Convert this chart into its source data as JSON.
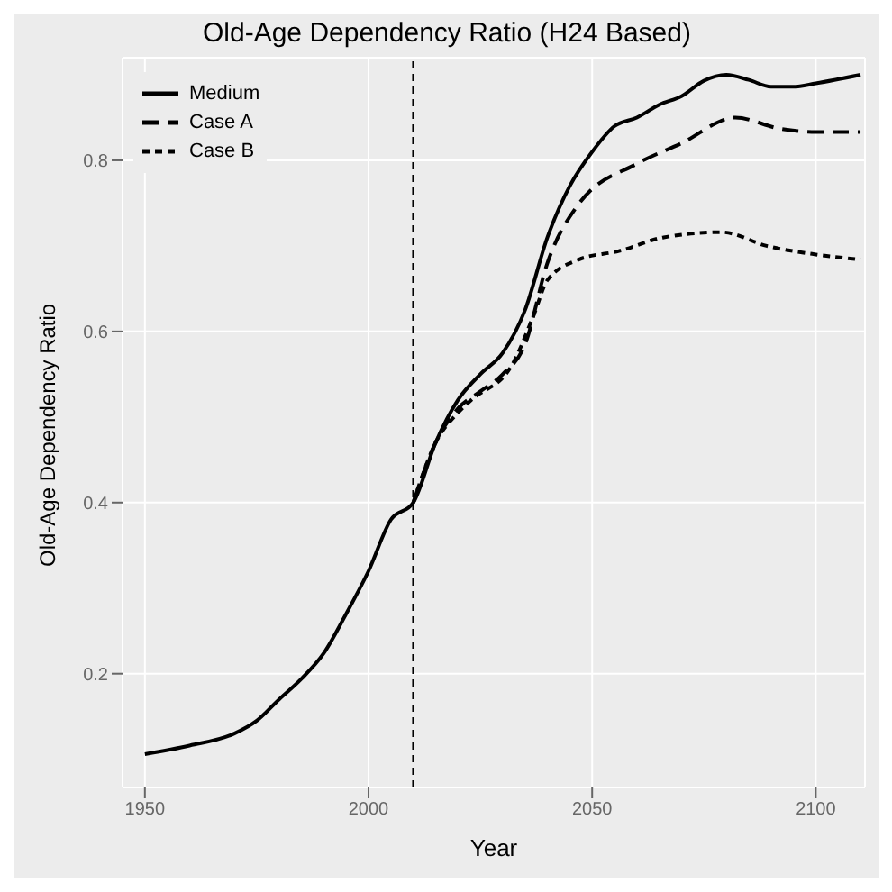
{
  "chart_data": {
    "type": "line",
    "title": "Old-Age Dependency Ratio (H24 Based)",
    "xlabel": "Year",
    "ylabel": "Old-Age Dependency Ratio",
    "xlim": [
      1945,
      2111
    ],
    "ylim": [
      0.067,
      0.92
    ],
    "xticks": [
      1950,
      2000,
      2050,
      2100
    ],
    "yticks": [
      0.2,
      0.4,
      0.6,
      0.8
    ],
    "grid": true,
    "legend": "top left",
    "marker": "none",
    "ref_lines": [
      {
        "axis": "x",
        "value": 2010,
        "color": "#000000",
        "line_style": "dotted"
      }
    ],
    "series": [
      {
        "name": "Medium",
        "color": "#000000",
        "line_style": "solid",
        "x": [
          1950,
          1960,
          1970,
          1975,
          1980,
          1985,
          1990,
          1995,
          2000,
          2005,
          2010,
          2015,
          2020,
          2025,
          2030,
          2035,
          2040,
          2045,
          2050,
          2055,
          2060,
          2065,
          2070,
          2075,
          2080,
          2085,
          2090,
          2095,
          2100,
          2110
        ],
        "values": [
          0.106,
          0.116,
          0.13,
          0.145,
          0.17,
          0.194,
          0.224,
          0.27,
          0.32,
          0.38,
          0.4,
          0.47,
          0.52,
          0.55,
          0.575,
          0.625,
          0.71,
          0.77,
          0.81,
          0.84,
          0.85,
          0.865,
          0.875,
          0.893,
          0.9,
          0.894,
          0.886,
          0.886,
          0.89,
          0.9
        ]
      },
      {
        "name": "Case A",
        "color": "#000000",
        "line_style": "dashed",
        "x": [
          2010,
          2015,
          2020,
          2025,
          2030,
          2035,
          2040,
          2047,
          2060,
          2070,
          2082,
          2092,
          2100,
          2110
        ],
        "values": [
          0.4,
          0.47,
          0.51,
          0.53,
          0.55,
          0.585,
          0.68,
          0.749,
          0.796,
          0.82,
          0.85,
          0.837,
          0.833,
          0.833
        ]
      },
      {
        "name": "Case B",
        "color": "#000000",
        "line_style": "dotted",
        "x": [
          2010,
          2015,
          2020,
          2023,
          2032,
          2037,
          2040,
          2047,
          2056,
          2066,
          2079,
          2089,
          2100,
          2110
        ],
        "values": [
          0.4,
          0.47,
          0.505,
          0.52,
          0.56,
          0.62,
          0.66,
          0.684,
          0.694,
          0.71,
          0.716,
          0.7,
          0.69,
          0.684
        ]
      }
    ]
  }
}
